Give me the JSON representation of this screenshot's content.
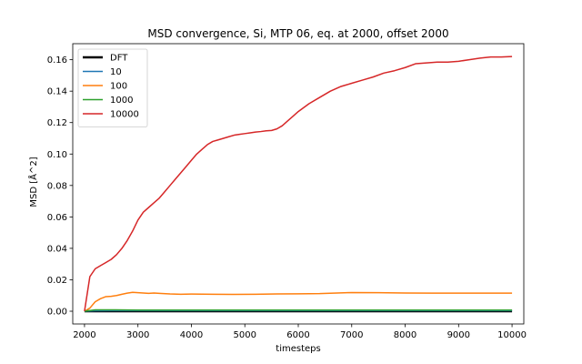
{
  "chart_data": {
    "type": "line",
    "title": "MSD convergence, Si, MTP 06, eq. at 2000, offset 2000",
    "xlabel": "timesteps",
    "ylabel": "MSD [Å^2]",
    "xlim": [
      1780,
      10220
    ],
    "ylim": [
      -0.0081,
      0.1702
    ],
    "xticks": [
      2000,
      3000,
      4000,
      5000,
      6000,
      7000,
      8000,
      9000,
      10000
    ],
    "yticks": [
      0.0,
      0.02,
      0.04,
      0.06,
      0.08,
      0.1,
      0.12,
      0.14,
      0.16
    ],
    "ytick_labels": [
      "0.00",
      "0.02",
      "0.04",
      "0.06",
      "0.08",
      "0.10",
      "0.12",
      "0.14",
      "0.16"
    ],
    "legend_position": "top-left",
    "grid": false,
    "series": [
      {
        "name": "DFT",
        "color": "#000000",
        "x": [
          2000,
          10000
        ],
        "y": [
          0.0,
          0.0
        ]
      },
      {
        "name": "10",
        "color": "#1f77b4",
        "x": [
          2000,
          2200,
          2500,
          3000,
          4000,
          5000,
          6000,
          7000,
          8000,
          9000,
          10000
        ],
        "y": [
          0.0,
          0.0003,
          0.0004,
          0.0004,
          0.0004,
          0.0004,
          0.0004,
          0.0004,
          0.0004,
          0.0004,
          0.0004
        ]
      },
      {
        "name": "100",
        "color": "#ff7f0e",
        "x": [
          2000,
          2100,
          2200,
          2300,
          2400,
          2500,
          2600,
          2700,
          2800,
          2900,
          3000,
          3100,
          3200,
          3300,
          3400,
          3600,
          3800,
          4000,
          4400,
          4800,
          5200,
          5600,
          6000,
          6400,
          7000,
          7500,
          8000,
          8500,
          9000,
          9500,
          10000
        ],
        "y": [
          0.0,
          0.002,
          0.006,
          0.008,
          0.0093,
          0.0095,
          0.01,
          0.0108,
          0.0115,
          0.012,
          0.0118,
          0.0116,
          0.0114,
          0.0116,
          0.0114,
          0.011,
          0.0108,
          0.0109,
          0.0108,
          0.0107,
          0.0108,
          0.011,
          0.0111,
          0.0112,
          0.0119,
          0.0118,
          0.0116,
          0.0115,
          0.0115,
          0.0115,
          0.0115
        ]
      },
      {
        "name": "1000",
        "color": "#2ca02c",
        "x": [
          2000,
          2200,
          2500,
          3000,
          4000,
          5000,
          6000,
          7000,
          8000,
          9000,
          10000
        ],
        "y": [
          0.0,
          0.0009,
          0.0009,
          0.0007,
          0.0007,
          0.0007,
          0.0007,
          0.0007,
          0.0007,
          0.0007,
          0.0007
        ]
      },
      {
        "name": "10000",
        "color": "#d62728",
        "x": [
          2000,
          2100,
          2200,
          2300,
          2400,
          2500,
          2600,
          2700,
          2800,
          2900,
          3000,
          3100,
          3200,
          3300,
          3400,
          3500,
          3600,
          3700,
          3800,
          3900,
          4000,
          4100,
          4200,
          4300,
          4400,
          4500,
          4600,
          4700,
          4800,
          4900,
          5000,
          5100,
          5200,
          5300,
          5400,
          5500,
          5600,
          5700,
          5800,
          5900,
          6000,
          6200,
          6400,
          6600,
          6800,
          7000,
          7200,
          7400,
          7600,
          7800,
          8000,
          8200,
          8400,
          8600,
          8800,
          9000,
          9200,
          9400,
          9600,
          9800,
          10000
        ],
        "y": [
          0.0,
          0.022,
          0.027,
          0.029,
          0.031,
          0.033,
          0.036,
          0.04,
          0.045,
          0.051,
          0.058,
          0.063,
          0.066,
          0.069,
          0.072,
          0.076,
          0.08,
          0.084,
          0.088,
          0.092,
          0.096,
          0.1,
          0.103,
          0.106,
          0.108,
          0.109,
          0.11,
          0.111,
          0.112,
          0.1125,
          0.113,
          0.1135,
          0.114,
          0.1143,
          0.1148,
          0.115,
          0.116,
          0.118,
          0.121,
          0.124,
          0.127,
          0.132,
          0.136,
          0.14,
          0.143,
          0.145,
          0.147,
          0.149,
          0.1515,
          0.153,
          0.155,
          0.1575,
          0.158,
          0.1585,
          0.1585,
          0.159,
          0.16,
          0.161,
          0.1617,
          0.1617,
          0.162
        ]
      }
    ]
  }
}
